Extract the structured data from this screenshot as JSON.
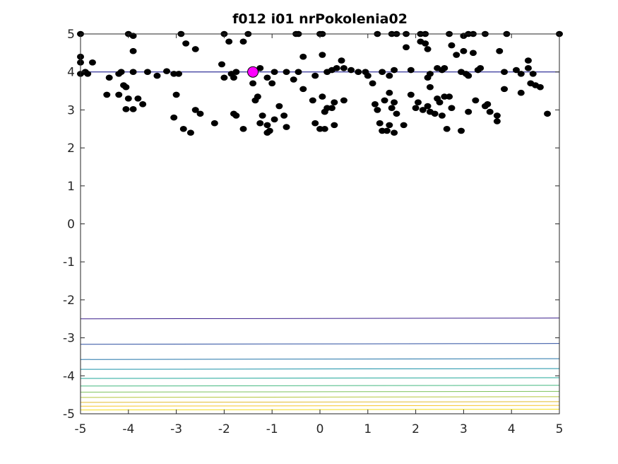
{
  "chart_data": {
    "type": "scatter",
    "title": "f012 i01 nrPokolenia02",
    "xlabel": "",
    "ylabel": "",
    "xlim": [
      -5,
      5
    ],
    "ylim": [
      -5,
      5
    ],
    "x_ticks": [
      "-5",
      "-4",
      "-3",
      "-2",
      "-1",
      "0",
      "1",
      "2",
      "3",
      "4",
      "5"
    ],
    "y_ticks": [
      "5",
      "4",
      "3",
      "2",
      "1",
      "0",
      "-1",
      "-2",
      "-3",
      "-4",
      "-5"
    ],
    "grid": false,
    "colors": {
      "points": "#000000",
      "best_point": "#ff00ff",
      "line_through_best": "#000080",
      "contours": [
        "#3b1f8c",
        "#2c4ea0",
        "#2173a8",
        "#1b91a8",
        "#22a79a",
        "#45b880",
        "#7ec35c",
        "#b6c63e",
        "#e2bd2f",
        "#f7c52a",
        "#f5df1c"
      ]
    },
    "contour_levels_y": [
      -2.5,
      -3.17,
      -3.57,
      -3.83,
      -4.07,
      -4.27,
      -4.43,
      -4.57,
      -4.7,
      -4.8,
      -4.9
    ],
    "best_point": {
      "x": -1.4,
      "y": 4.0
    },
    "horizontal_line_y": 4.0,
    "points": [
      [
        -5,
        5
      ],
      [
        -4,
        5
      ],
      [
        -3.9,
        4.95
      ],
      [
        -2.9,
        5
      ],
      [
        -2,
        5
      ],
      [
        -1.9,
        4.8
      ],
      [
        -1.5,
        5
      ],
      [
        -1.6,
        4.8
      ],
      [
        -0.5,
        5
      ],
      [
        -0.45,
        5
      ],
      [
        0.05,
        5
      ],
      [
        0,
        5
      ],
      [
        1.2,
        5
      ],
      [
        1.5,
        5
      ],
      [
        1.6,
        5
      ],
      [
        1.8,
        5
      ],
      [
        2.1,
        5
      ],
      [
        2.2,
        5
      ],
      [
        2.7,
        5
      ],
      [
        3,
        4.95
      ],
      [
        3.1,
        5
      ],
      [
        3.2,
        5
      ],
      [
        3.45,
        5
      ],
      [
        3.9,
        5
      ],
      [
        5,
        5
      ],
      [
        -5,
        4.4
      ],
      [
        -4.75,
        4.25
      ],
      [
        -5,
        4.25
      ],
      [
        -4.9,
        4
      ],
      [
        -5,
        3.95
      ],
      [
        -4.85,
        3.95
      ],
      [
        -4.4,
        3.85
      ],
      [
        -4.2,
        3.95
      ],
      [
        -4.15,
        4
      ],
      [
        -3.9,
        4.55
      ],
      [
        -3.9,
        4
      ],
      [
        -3.6,
        4
      ],
      [
        -3.4,
        3.9
      ],
      [
        -3.2,
        4.02
      ],
      [
        -2.95,
        3.95
      ],
      [
        -2.8,
        4.75
      ],
      [
        -2.6,
        4.6
      ],
      [
        -2.05,
        4.2
      ],
      [
        -2,
        3.85
      ],
      [
        -1.85,
        3.95
      ],
      [
        -1.8,
        3.85
      ],
      [
        -1.75,
        4
      ],
      [
        -1.4,
        4
      ],
      [
        -1.4,
        3.7
      ],
      [
        -1.25,
        4.1
      ],
      [
        -1.1,
        3.85
      ],
      [
        -1.0,
        3.7
      ],
      [
        -0.95,
        4
      ],
      [
        -0.7,
        4
      ],
      [
        -0.55,
        3.8
      ],
      [
        -0.45,
        4.0
      ],
      [
        -0.35,
        4.4
      ],
      [
        -0.1,
        3.9
      ],
      [
        0.05,
        4.45
      ],
      [
        0.15,
        4.0
      ],
      [
        0.25,
        4.05
      ],
      [
        0.35,
        4.1
      ],
      [
        0.45,
        4.3
      ],
      [
        0.5,
        4.1
      ],
      [
        0.65,
        4.05
      ],
      [
        0.8,
        4.0
      ],
      [
        0.95,
        4.0
      ],
      [
        1.0,
        3.9
      ],
      [
        1.1,
        3.7
      ],
      [
        1.3,
        4.0
      ],
      [
        1.45,
        3.9
      ],
      [
        1.55,
        4.05
      ],
      [
        1.9,
        4.05
      ],
      [
        2.1,
        4.8
      ],
      [
        2.2,
        4.75
      ],
      [
        1.8,
        4.65
      ],
      [
        2.25,
        3.85
      ],
      [
        2.3,
        3.95
      ],
      [
        2.45,
        4.1
      ],
      [
        2.25,
        4.6
      ],
      [
        2.55,
        4.05
      ],
      [
        2.6,
        4.1
      ],
      [
        2.75,
        4.7
      ],
      [
        2.85,
        4.45
      ],
      [
        2.95,
        4.0
      ],
      [
        3.0,
        4.55
      ],
      [
        3.05,
        3.95
      ],
      [
        3.1,
        3.9
      ],
      [
        3.2,
        4.5
      ],
      [
        3.3,
        4.05
      ],
      [
        3.35,
        4.1
      ],
      [
        3.75,
        4.55
      ],
      [
        3.85,
        4.0
      ],
      [
        4.1,
        4.05
      ],
      [
        4.2,
        3.95
      ],
      [
        4.35,
        4.3
      ],
      [
        4.45,
        3.95
      ],
      [
        4.35,
        4.1
      ],
      [
        -4.45,
        3.4
      ],
      [
        -4.2,
        3.4
      ],
      [
        -4.1,
        3.65
      ],
      [
        -4.05,
        3.6
      ],
      [
        -4.0,
        3.3
      ],
      [
        -3.8,
        3.3
      ],
      [
        -3.7,
        3.15
      ],
      [
        -4.05,
        3.02
      ],
      [
        -3.9,
        3.02
      ],
      [
        -3.05,
        2.8
      ],
      [
        -3.0,
        3.4
      ],
      [
        -2.85,
        2.5
      ],
      [
        -2.7,
        2.4
      ],
      [
        -2.6,
        3.0
      ],
      [
        -2.5,
        2.9
      ],
      [
        -2.2,
        2.65
      ],
      [
        -1.8,
        2.9
      ],
      [
        -1.75,
        2.85
      ],
      [
        -1.6,
        2.5
      ],
      [
        -1.3,
        3.35
      ],
      [
        -1.35,
        3.25
      ],
      [
        -1.25,
        2.65
      ],
      [
        -1.2,
        2.85
      ],
      [
        -1.1,
        2.6
      ],
      [
        -1.05,
        2.45
      ],
      [
        -1.1,
        2.4
      ],
      [
        -0.95,
        2.75
      ],
      [
        -0.85,
        3.1
      ],
      [
        -0.75,
        2.85
      ],
      [
        -0.7,
        2.55
      ],
      [
        -0.35,
        3.55
      ],
      [
        -0.15,
        3.25
      ],
      [
        -0.1,
        2.65
      ],
      [
        0.0,
        2.5
      ],
      [
        0.05,
        3.35
      ],
      [
        0.1,
        2.95
      ],
      [
        0.1,
        2.5
      ],
      [
        0.15,
        3.05
      ],
      [
        0.25,
        3.05
      ],
      [
        0.3,
        3.2
      ],
      [
        0.3,
        2.6
      ],
      [
        0.5,
        3.25
      ],
      [
        1.15,
        3.15
      ],
      [
        1.2,
        3.0
      ],
      [
        1.25,
        2.65
      ],
      [
        1.3,
        2.45
      ],
      [
        1.35,
        3.25
      ],
      [
        1.45,
        3.45
      ],
      [
        1.45,
        2.6
      ],
      [
        1.5,
        3.05
      ],
      [
        1.55,
        3.2
      ],
      [
        1.55,
        2.4
      ],
      [
        1.4,
        2.45
      ],
      [
        1.6,
        2.9
      ],
      [
        1.75,
        2.6
      ],
      [
        1.9,
        3.4
      ],
      [
        2.0,
        3.05
      ],
      [
        2.05,
        3.2
      ],
      [
        2.15,
        3.0
      ],
      [
        2.25,
        3.1
      ],
      [
        2.3,
        2.95
      ],
      [
        2.4,
        2.9
      ],
      [
        2.5,
        3.2
      ],
      [
        2.45,
        3.3
      ],
      [
        2.55,
        2.85
      ],
      [
        2.6,
        3.35
      ],
      [
        2.7,
        3.35
      ],
      [
        2.75,
        3.05
      ],
      [
        2.65,
        2.5
      ],
      [
        2.95,
        2.45
      ],
      [
        3.1,
        2.95
      ],
      [
        3.25,
        3.25
      ],
      [
        3.45,
        3.1
      ],
      [
        3.5,
        3.15
      ],
      [
        3.55,
        2.95
      ],
      [
        3.7,
        2.85
      ],
      [
        3.7,
        2.7
      ],
      [
        3.85,
        3.55
      ],
      [
        2.3,
        3.6
      ],
      [
        4.2,
        3.45
      ],
      [
        4.4,
        3.7
      ],
      [
        4.5,
        3.65
      ],
      [
        4.6,
        3.6
      ],
      [
        4.75,
        2.9
      ],
      [
        -3.05,
        3.95
      ]
    ]
  }
}
